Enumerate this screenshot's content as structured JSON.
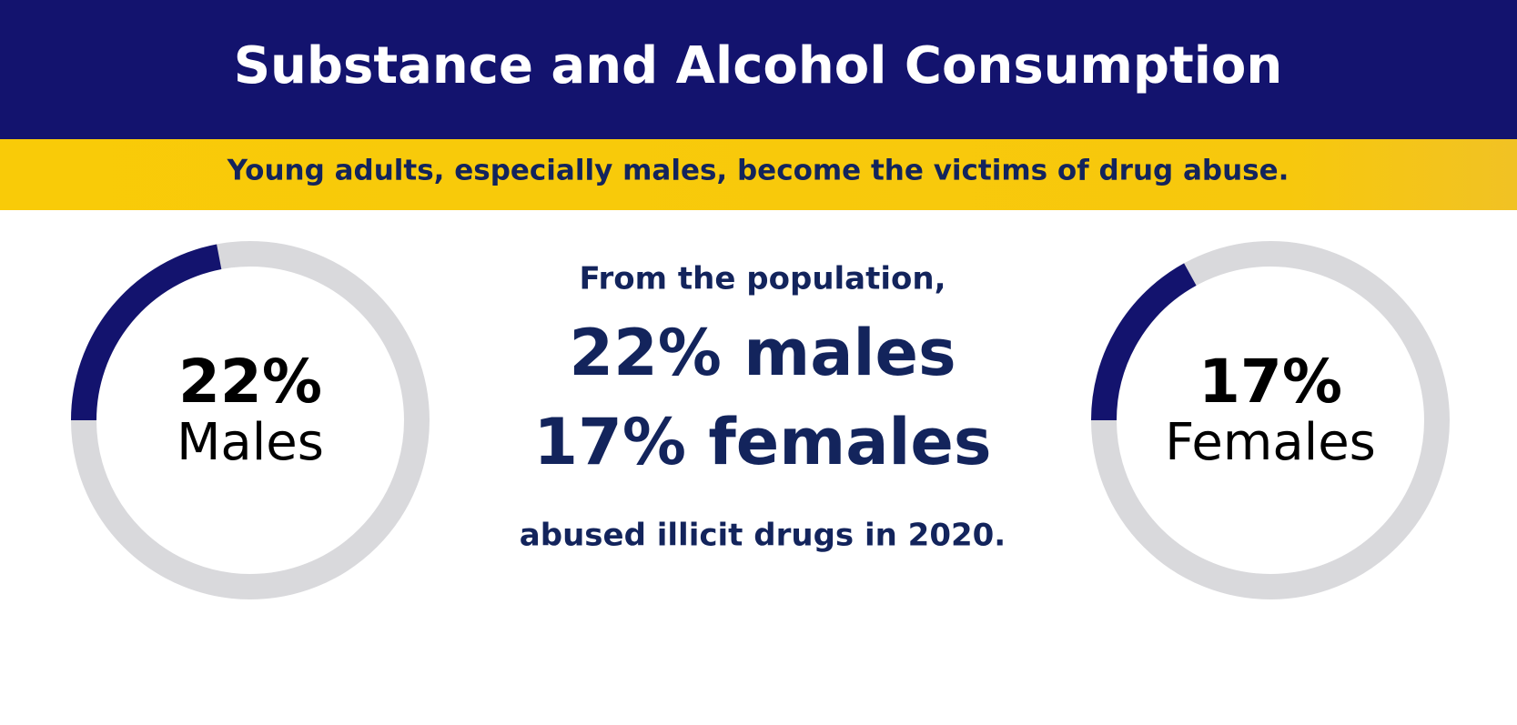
{
  "header": {
    "title": "Substance and Alcohol Consumption",
    "subtitle": "Young adults, especially males, become the victims of drug abuse."
  },
  "rings": [
    {
      "value": 22,
      "value_label": "22%",
      "label": "Males",
      "color": "#13136e"
    },
    {
      "value": 17,
      "value_label": "17%",
      "label": "Females",
      "color": "#13136e"
    }
  ],
  "center": {
    "intro": "From the population,",
    "lines": [
      "22% males",
      "17% females"
    ],
    "outro": "abused illicit drugs in 2020."
  }
}
